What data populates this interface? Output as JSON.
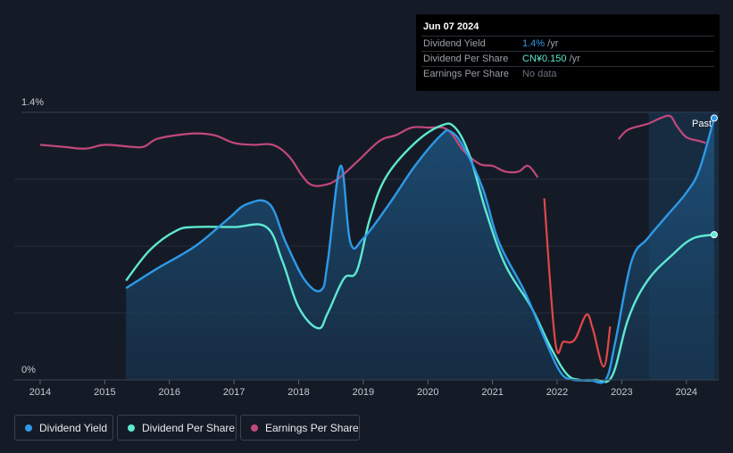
{
  "tooltip": {
    "date": "Jun 07 2024",
    "rows": [
      {
        "label": "Dividend Yield",
        "value": "1.4%",
        "unit": " /yr",
        "color": "#2d9ae8"
      },
      {
        "label": "Dividend Per Share",
        "value": "CN¥0.150",
        "unit": " /yr",
        "color": "#5ee8d2"
      },
      {
        "label": "Earnings Per Share",
        "value": "No data",
        "unit": "",
        "color": "#6b7280"
      }
    ]
  },
  "legend": [
    {
      "label": "Dividend Yield",
      "color": "#2d9ae8"
    },
    {
      "label": "Dividend Per Share",
      "color": "#5ee8d2"
    },
    {
      "label": "Earnings Per Share",
      "color": "#c2487c"
    }
  ],
  "chart_data": {
    "type": "line",
    "x_ticks": [
      "2014",
      "2015",
      "2016",
      "2017",
      "2018",
      "2019",
      "2020",
      "2021",
      "2022",
      "2023",
      "2024"
    ],
    "y_ticks": [
      "0%",
      "1.4%"
    ],
    "xlim": [
      2013.6,
      2024.5
    ],
    "ylim": [
      0,
      1.4
    ],
    "past_label": "Past",
    "past_start": 2023.42,
    "series": [
      {
        "name": "Dividend Yield",
        "color": "#2d9ae8",
        "axis": "percent",
        "points": [
          [
            2015.33,
            0.48
          ],
          [
            2015.8,
            0.58
          ],
          [
            2016.4,
            0.7
          ],
          [
            2016.9,
            0.84
          ],
          [
            2017.2,
            0.92
          ],
          [
            2017.55,
            0.92
          ],
          [
            2017.8,
            0.72
          ],
          [
            2018.1,
            0.52
          ],
          [
            2018.35,
            0.47
          ],
          [
            2018.45,
            0.62
          ],
          [
            2018.65,
            1.12
          ],
          [
            2018.8,
            0.72
          ],
          [
            2019.0,
            0.74
          ],
          [
            2019.4,
            0.92
          ],
          [
            2019.8,
            1.12
          ],
          [
            2020.2,
            1.28
          ],
          [
            2020.35,
            1.3
          ],
          [
            2020.55,
            1.22
          ],
          [
            2020.85,
            1.0
          ],
          [
            2021.1,
            0.72
          ],
          [
            2021.5,
            0.46
          ],
          [
            2021.8,
            0.22
          ],
          [
            2022.05,
            0.04
          ],
          [
            2022.25,
            0.0
          ],
          [
            2022.5,
            0.0
          ],
          [
            2022.75,
            0.0
          ],
          [
            2022.9,
            0.2
          ],
          [
            2023.15,
            0.62
          ],
          [
            2023.4,
            0.74
          ],
          [
            2023.7,
            0.86
          ],
          [
            2024.0,
            0.98
          ],
          [
            2024.2,
            1.1
          ],
          [
            2024.43,
            1.37
          ]
        ]
      },
      {
        "name": "Dividend Per Share",
        "color": "#5ee8d2",
        "axis": "percent",
        "points": [
          [
            2015.33,
            0.52
          ],
          [
            2015.7,
            0.68
          ],
          [
            2016.1,
            0.78
          ],
          [
            2016.4,
            0.8
          ],
          [
            2017.0,
            0.8
          ],
          [
            2017.5,
            0.8
          ],
          [
            2017.75,
            0.62
          ],
          [
            2018.0,
            0.38
          ],
          [
            2018.3,
            0.27
          ],
          [
            2018.45,
            0.35
          ],
          [
            2018.7,
            0.53
          ],
          [
            2018.9,
            0.57
          ],
          [
            2019.1,
            0.84
          ],
          [
            2019.35,
            1.06
          ],
          [
            2019.8,
            1.24
          ],
          [
            2020.2,
            1.33
          ],
          [
            2020.42,
            1.32
          ],
          [
            2020.65,
            1.17
          ],
          [
            2020.9,
            0.88
          ],
          [
            2021.2,
            0.6
          ],
          [
            2021.6,
            0.38
          ],
          [
            2021.9,
            0.17
          ],
          [
            2022.15,
            0.03
          ],
          [
            2022.35,
            0.0
          ],
          [
            2022.6,
            0.0
          ],
          [
            2022.85,
            0.02
          ],
          [
            2023.1,
            0.32
          ],
          [
            2023.4,
            0.52
          ],
          [
            2023.8,
            0.66
          ],
          [
            2024.1,
            0.74
          ],
          [
            2024.43,
            0.76
          ]
        ]
      },
      {
        "name": "Earnings Per Share",
        "color": "#c2487c",
        "axis": "eps",
        "points": [
          [
            2014.0,
            1.23
          ],
          [
            2014.35,
            1.22
          ],
          [
            2014.7,
            1.21
          ],
          [
            2015.0,
            1.23
          ],
          [
            2015.4,
            1.22
          ],
          [
            2015.6,
            1.22
          ],
          [
            2015.8,
            1.26
          ],
          [
            2016.1,
            1.28
          ],
          [
            2016.4,
            1.29
          ],
          [
            2016.7,
            1.28
          ],
          [
            2017.0,
            1.24
          ],
          [
            2017.3,
            1.23
          ],
          [
            2017.6,
            1.23
          ],
          [
            2017.85,
            1.17
          ],
          [
            2018.05,
            1.07
          ],
          [
            2018.2,
            1.02
          ],
          [
            2018.4,
            1.02
          ],
          [
            2018.6,
            1.05
          ],
          [
            2018.9,
            1.14
          ],
          [
            2019.25,
            1.25
          ],
          [
            2019.5,
            1.28
          ],
          [
            2019.75,
            1.32
          ],
          [
            2020.0,
            1.32
          ],
          [
            2020.3,
            1.31
          ],
          [
            2020.55,
            1.2
          ],
          [
            2020.8,
            1.13
          ],
          [
            2021.0,
            1.12
          ],
          [
            2021.2,
            1.09
          ],
          [
            2021.4,
            1.09
          ],
          [
            2021.55,
            1.12
          ],
          [
            2021.7,
            1.06
          ],
          [
            2021.8,
            0.95
          ],
          [
            2021.97,
            0.2
          ],
          [
            2022.1,
            0.2
          ],
          [
            2022.27,
            0.21
          ],
          [
            2022.45,
            0.34
          ],
          [
            2022.55,
            0.27
          ],
          [
            2022.72,
            0.07
          ],
          [
            2022.82,
            0.28
          ],
          [
            2022.95,
            1.26
          ],
          [
            2023.1,
            1.31
          ],
          [
            2023.4,
            1.34
          ],
          [
            2023.6,
            1.37
          ],
          [
            2023.75,
            1.38
          ],
          [
            2023.85,
            1.33
          ],
          [
            2024.0,
            1.27
          ],
          [
            2024.2,
            1.25
          ],
          [
            2024.3,
            1.24
          ]
        ],
        "gap_color": "#e24848",
        "gap_range": [
          2021.72,
          2022.88
        ]
      }
    ]
  }
}
